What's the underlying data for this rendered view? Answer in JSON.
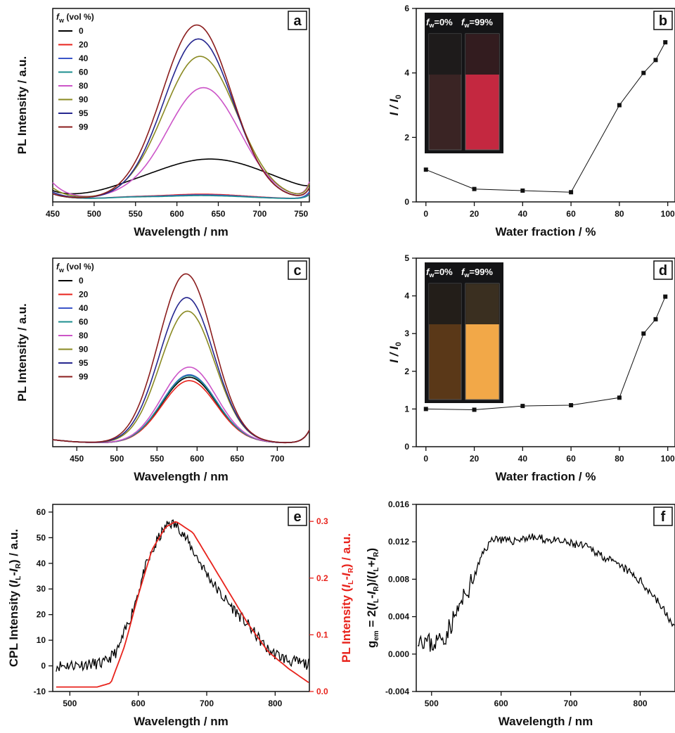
{
  "chart_data": [
    {
      "panel": "a",
      "type": "line",
      "xlabel": "Wavelength / nm",
      "ylabel": "PL Intensity / a.u.",
      "xlim": [
        450,
        760
      ],
      "xticks": [
        450,
        500,
        550,
        600,
        650,
        700,
        750
      ],
      "legend_title": "f_w (vol %)",
      "legend_title_main": "f",
      "legend_title_sub": "w",
      "legend_title_rest": " (vol %)",
      "series": [
        {
          "name": "0",
          "color": "#000000",
          "peak": 230,
          "center": 640,
          "width": 75
        },
        {
          "name": "20",
          "color": "#e8231c",
          "peak": 28,
          "center": 630,
          "width": 55
        },
        {
          "name": "40",
          "color": "#3b55c9",
          "peak": 24,
          "center": 630,
          "width": 55
        },
        {
          "name": "60",
          "color": "#1e8f8f",
          "peak": 20,
          "center": 630,
          "width": 55
        },
        {
          "name": "80",
          "color": "#cc55c8",
          "peak": 640,
          "center": 632,
          "width": 44
        },
        {
          "name": "90",
          "color": "#8a8a22",
          "peak": 820,
          "center": 628,
          "width": 44
        },
        {
          "name": "95",
          "color": "#26278f",
          "peak": 920,
          "center": 626,
          "width": 42
        },
        {
          "name": "99",
          "color": "#8b1d1d",
          "peak": 1000,
          "center": 624,
          "width": 42
        }
      ]
    },
    {
      "panel": "b",
      "type": "line",
      "xlabel": "Water fraction / %",
      "ylabel": "I / I0",
      "xlim": [
        -4,
        103
      ],
      "ylim": [
        0,
        6
      ],
      "xticks": [
        0,
        20,
        40,
        60,
        80,
        100
      ],
      "yticks": [
        0,
        2,
        4,
        6
      ],
      "x": [
        0,
        20,
        40,
        60,
        80,
        90,
        95,
        99
      ],
      "y": [
        1.0,
        0.4,
        0.35,
        0.3,
        3.0,
        4.0,
        4.4,
        4.95
      ],
      "inset_labels": [
        "f_w=0%",
        "f_w=99%"
      ]
    },
    {
      "panel": "c",
      "type": "line",
      "xlabel": "Wavelength / nm",
      "ylabel": "PL Intensity / a.u.",
      "xlim": [
        420,
        740
      ],
      "xticks": [
        450,
        500,
        550,
        600,
        650,
        700
      ],
      "legend_title": "f_w (vol %)",
      "legend_title_main": "f",
      "legend_title_sub": "w",
      "legend_title_rest": " (vol %)",
      "series": [
        {
          "name": "0",
          "color": "#000000",
          "peak": 390,
          "center": 590,
          "width": 34
        },
        {
          "name": "20",
          "color": "#e8231c",
          "peak": 370,
          "center": 590,
          "width": 34
        },
        {
          "name": "40",
          "color": "#3b55c9",
          "peak": 405,
          "center": 590,
          "width": 34
        },
        {
          "name": "60",
          "color": "#1e8f8f",
          "peak": 400,
          "center": 590,
          "width": 34
        },
        {
          "name": "80",
          "color": "#cc55c8",
          "peak": 450,
          "center": 590,
          "width": 34
        },
        {
          "name": "90",
          "color": "#8a8a22",
          "peak": 780,
          "center": 588,
          "width": 34
        },
        {
          "name": "95",
          "color": "#26278f",
          "peak": 860,
          "center": 587,
          "width": 34
        },
        {
          "name": "99",
          "color": "#8b1d1d",
          "peak": 1000,
          "center": 586,
          "width": 34
        }
      ]
    },
    {
      "panel": "d",
      "type": "line",
      "xlabel": "Water fraction / %",
      "ylabel": "I / I0",
      "xlim": [
        -4,
        103
      ],
      "ylim": [
        0,
        5
      ],
      "xticks": [
        0,
        20,
        40,
        60,
        80,
        100
      ],
      "yticks": [
        0,
        1,
        2,
        3,
        4,
        5
      ],
      "x": [
        0,
        20,
        40,
        60,
        80,
        90,
        95,
        99
      ],
      "y": [
        1.0,
        0.98,
        1.08,
        1.1,
        1.3,
        3.0,
        3.38,
        3.98
      ],
      "inset_labels": [
        "f_w=0%",
        "f_w=99%"
      ]
    },
    {
      "panel": "e",
      "type": "line",
      "xlabel": "Wavelength / nm",
      "ylabel_left": "CPL Intensity (I_L-I_R) / a.u.",
      "ylabel_right": "PL Intensity (I_L-I_R) / a.u.",
      "xlim": [
        475,
        850
      ],
      "ylim_left": [
        -10,
        63
      ],
      "ylim_right": [
        0,
        0.33
      ],
      "xticks": [
        500,
        600,
        700,
        800
      ],
      "yticks_left": [
        -10,
        0,
        10,
        20,
        30,
        40,
        50,
        60
      ],
      "yticks_right": [
        0.0,
        0.1,
        0.2,
        0.3
      ],
      "series": [
        {
          "name": "CPL",
          "color": "#000000",
          "x": [
            480,
            550,
            570,
            590,
            610,
            630,
            645,
            660,
            680,
            700,
            720,
            740,
            760,
            790,
            820,
            850
          ],
          "y": [
            0,
            1,
            6,
            20,
            38,
            50,
            56,
            54,
            45,
            36,
            28,
            22,
            16,
            6,
            2,
            0.5
          ]
        },
        {
          "name": "PL",
          "color": "#e8231c",
          "x": [
            480,
            540,
            560,
            580,
            600,
            620,
            640,
            655,
            680,
            700,
            730,
            760,
            790,
            820,
            850
          ],
          "y": [
            0.008,
            0.008,
            0.015,
            0.08,
            0.17,
            0.25,
            0.29,
            0.3,
            0.28,
            0.24,
            0.18,
            0.12,
            0.07,
            0.04,
            0.015
          ]
        }
      ]
    },
    {
      "panel": "f",
      "type": "line",
      "xlabel": "Wavelength / nm",
      "ylabel": "g_em = 2(I_L-I_R)/(I_L+I_R)",
      "xlim": [
        478,
        850
      ],
      "ylim": [
        -0.004,
        0.016
      ],
      "xticks": [
        500,
        600,
        700,
        800
      ],
      "yticks": [
        -0.004,
        0.0,
        0.004,
        0.008,
        0.012,
        0.016
      ],
      "ytick_labels": [
        "-0.004",
        "0.000",
        "0.004",
        "0.008",
        "0.012",
        "0.016"
      ],
      "series": [
        {
          "name": "g_em",
          "color": "#000000",
          "x": [
            480,
            500,
            520,
            540,
            560,
            575,
            590,
            610,
            640,
            670,
            700,
            720,
            740,
            760,
            780,
            800,
            820,
            840,
            850
          ],
          "y": [
            0.002,
            0.001,
            0.002,
            0.005,
            0.008,
            0.011,
            0.0125,
            0.012,
            0.0125,
            0.0122,
            0.0118,
            0.0115,
            0.0108,
            0.0098,
            0.009,
            0.0078,
            0.0062,
            0.004,
            0.0025
          ]
        }
      ]
    }
  ]
}
